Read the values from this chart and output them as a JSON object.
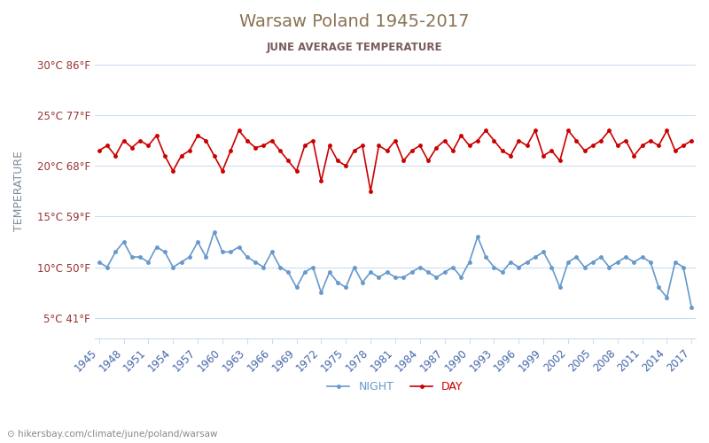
{
  "title": "Warsaw Poland 1945-2017",
  "subtitle": "JUNE AVERAGE TEMPERATURE",
  "ylabel": "TEMPERATURE",
  "xlabel_watermark": "hikersbay.com/climate/june/poland/warsaw",
  "year_start": 1945,
  "year_end": 2017,
  "yticks_c": [
    5,
    10,
    15,
    20,
    25,
    30
  ],
  "yticks_f": [
    41,
    50,
    59,
    68,
    77,
    86
  ],
  "ylim": [
    3,
    32
  ],
  "xtick_step": 3,
  "day_color": "#cc0000",
  "night_color": "#6699cc",
  "background_color": "#ffffff",
  "grid_color": "#ccddee",
  "title_color": "#8B7355",
  "subtitle_color": "#7a5c5c",
  "ylabel_color": "#7a8a9a",
  "tick_label_color": "#993333",
  "xtick_label_color": "#4466aa",
  "legend_night": "NIGHT",
  "legend_day": "DAY",
  "day_values": [
    21.5,
    22.0,
    21.0,
    22.5,
    21.8,
    22.5,
    22.0,
    23.0,
    21.0,
    19.5,
    21.0,
    21.5,
    23.0,
    22.5,
    21.0,
    19.5,
    21.5,
    23.5,
    22.5,
    21.8,
    22.0,
    22.5,
    21.5,
    20.5,
    19.5,
    22.0,
    22.5,
    18.5,
    22.0,
    20.5,
    20.0,
    21.5,
    22.0,
    17.5,
    22.0,
    21.5,
    22.5,
    20.5,
    21.5,
    22.0,
    20.5,
    21.8,
    22.5,
    21.5,
    23.0,
    22.0,
    22.5,
    23.5,
    22.5,
    21.5,
    21.0,
    22.5,
    22.0,
    23.5,
    21.0,
    21.5,
    20.5,
    23.5,
    22.5,
    21.5,
    22.0,
    22.5,
    23.5,
    22.0,
    22.5,
    21.0,
    22.0,
    22.5,
    22.0,
    23.5,
    21.5,
    22.0,
    22.5
  ],
  "night_values": [
    10.5,
    10.0,
    11.5,
    12.5,
    11.0,
    11.0,
    10.5,
    12.0,
    11.5,
    10.0,
    10.5,
    11.0,
    12.5,
    11.0,
    13.5,
    11.5,
    11.5,
    12.0,
    11.0,
    10.5,
    10.0,
    11.5,
    10.0,
    9.5,
    8.0,
    9.5,
    10.0,
    7.5,
    9.5,
    8.5,
    8.0,
    10.0,
    8.5,
    9.5,
    9.0,
    9.5,
    9.0,
    9.0,
    9.5,
    10.0,
    9.5,
    9.0,
    9.5,
    10.0,
    9.0,
    10.5,
    13.0,
    11.0,
    10.0,
    9.5,
    10.5,
    10.0,
    10.5,
    11.0,
    11.5,
    10.0,
    8.0,
    10.5,
    11.0,
    10.0,
    10.5,
    11.0,
    10.0,
    10.5,
    11.0,
    10.5,
    11.0,
    10.5,
    8.0,
    7.0,
    10.5,
    10.0,
    6.0
  ]
}
